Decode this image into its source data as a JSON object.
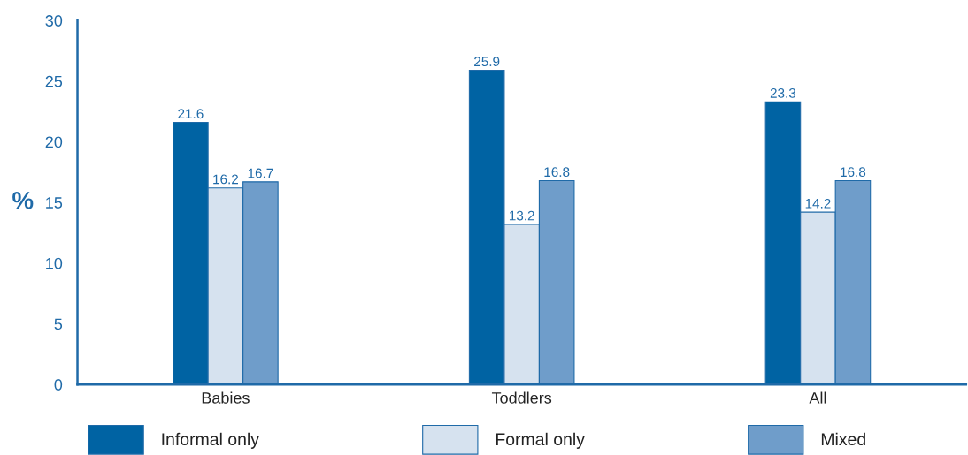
{
  "chart_data": {
    "type": "bar",
    "ylabel": "%",
    "categories": [
      "Babies",
      "Toddlers",
      "All"
    ],
    "series": [
      {
        "name": "Informal only",
        "color": "#0063a3",
        "values": [
          21.6,
          25.9,
          23.3
        ]
      },
      {
        "name": "Formal only",
        "color": "#d6e2ef",
        "values": [
          16.2,
          13.2,
          14.2
        ]
      },
      {
        "name": "Mixed",
        "color": "#6f9dca",
        "values": [
          16.7,
          16.8,
          16.8
        ]
      }
    ],
    "ylim": [
      0,
      30
    ],
    "yticks": [
      0,
      5,
      10,
      15,
      20,
      25,
      30
    ],
    "data_labels": true,
    "grid": false,
    "legend": "bottom"
  }
}
